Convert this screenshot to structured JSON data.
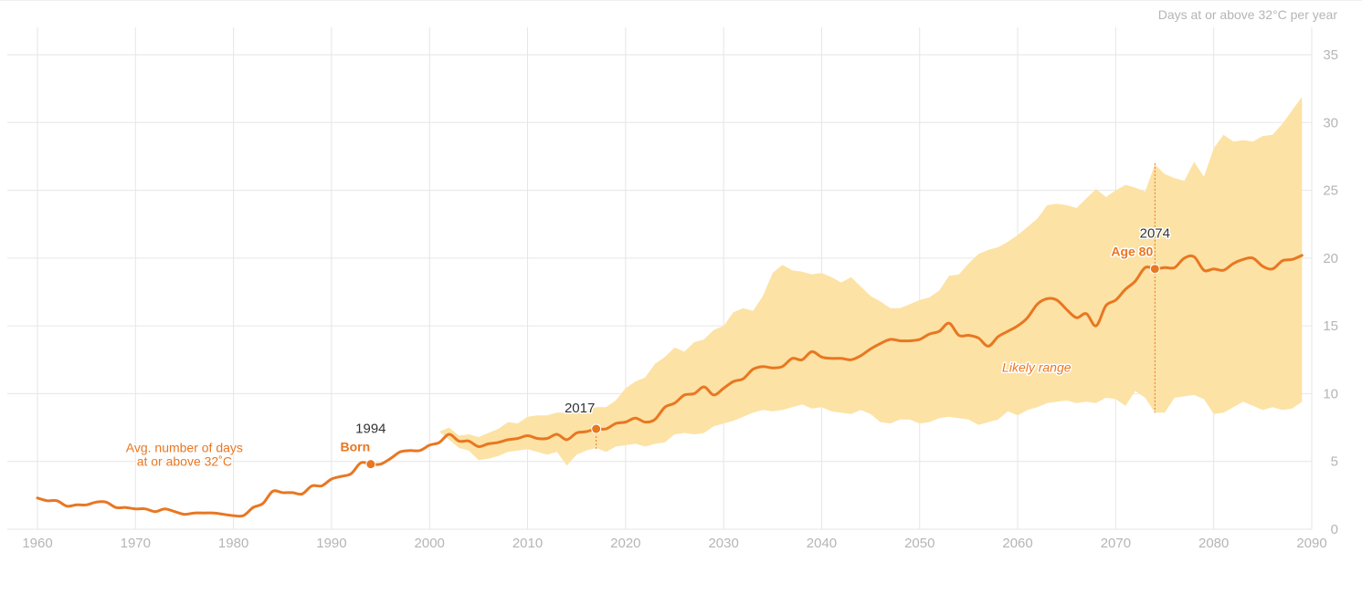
{
  "chart_data": {
    "type": "line",
    "ylabel": "Days at or above 32°C per year",
    "xlim": [
      1960,
      2090
    ],
    "ylim": [
      0,
      35
    ],
    "x_ticks": [
      1960,
      1970,
      1980,
      1990,
      2000,
      2010,
      2020,
      2030,
      2040,
      2050,
      2060,
      2070,
      2080,
      2090
    ],
    "y_ticks": [
      0,
      5,
      10,
      15,
      20,
      25,
      30,
      35
    ],
    "grid": true,
    "colors": {
      "line": "#e87722",
      "band": "#fce2a4",
      "grid": "#e6e6e6",
      "tick": "#b5b5b5",
      "label_dark": "#333333"
    },
    "series": [
      {
        "values": [
          [
            1960,
            2.3
          ],
          [
            1961,
            2.1
          ],
          [
            1962,
            2.1
          ],
          [
            1963,
            1.7
          ],
          [
            1964,
            1.8
          ],
          [
            1965,
            1.8
          ],
          [
            1966,
            2.0
          ],
          [
            1967,
            2.0
          ],
          [
            1968,
            1.6
          ],
          [
            1969,
            1.6
          ],
          [
            1970,
            1.5
          ],
          [
            1971,
            1.5
          ],
          [
            1972,
            1.3
          ],
          [
            1973,
            1.5
          ],
          [
            1974,
            1.3
          ],
          [
            1975,
            1.1
          ],
          [
            1976,
            1.2
          ],
          [
            1977,
            1.2
          ],
          [
            1978,
            1.2
          ],
          [
            1979,
            1.1
          ],
          [
            1980,
            1.0
          ],
          [
            1981,
            1.0
          ],
          [
            1982,
            1.6
          ],
          [
            1983,
            1.9
          ],
          [
            1984,
            2.8
          ],
          [
            1985,
            2.7
          ],
          [
            1986,
            2.7
          ],
          [
            1987,
            2.6
          ],
          [
            1988,
            3.2
          ],
          [
            1989,
            3.2
          ],
          [
            1990,
            3.7
          ],
          [
            1991,
            3.9
          ],
          [
            1992,
            4.1
          ],
          [
            1993,
            4.9
          ],
          [
            1994,
            4.8
          ],
          [
            1995,
            4.8
          ],
          [
            1996,
            5.2
          ],
          [
            1997,
            5.7
          ],
          [
            1998,
            5.8
          ],
          [
            1999,
            5.8
          ],
          [
            2000,
            6.2
          ],
          [
            2001,
            6.4
          ],
          [
            2002,
            7.0
          ],
          [
            2003,
            6.5
          ],
          [
            2004,
            6.5
          ],
          [
            2005,
            6.1
          ],
          [
            2006,
            6.3
          ],
          [
            2007,
            6.4
          ],
          [
            2008,
            6.6
          ],
          [
            2009,
            6.7
          ],
          [
            2010,
            6.9
          ],
          [
            2011,
            6.7
          ],
          [
            2012,
            6.7
          ],
          [
            2013,
            7.0
          ],
          [
            2014,
            6.6
          ],
          [
            2015,
            7.1
          ],
          [
            2016,
            7.2
          ],
          [
            2017,
            7.4
          ],
          [
            2018,
            7.4
          ],
          [
            2019,
            7.8
          ],
          [
            2020,
            7.9
          ],
          [
            2021,
            8.2
          ],
          [
            2022,
            7.9
          ],
          [
            2023,
            8.1
          ],
          [
            2024,
            9.0
          ],
          [
            2025,
            9.3
          ],
          [
            2026,
            9.9
          ],
          [
            2027,
            10.0
          ],
          [
            2028,
            10.5
          ],
          [
            2029,
            9.9
          ],
          [
            2030,
            10.4
          ],
          [
            2031,
            10.9
          ],
          [
            2032,
            11.1
          ],
          [
            2033,
            11.8
          ],
          [
            2034,
            12.0
          ],
          [
            2035,
            11.9
          ],
          [
            2036,
            12.0
          ],
          [
            2037,
            12.6
          ],
          [
            2038,
            12.5
          ],
          [
            2039,
            13.1
          ],
          [
            2040,
            12.7
          ],
          [
            2041,
            12.6
          ],
          [
            2042,
            12.6
          ],
          [
            2043,
            12.5
          ],
          [
            2044,
            12.8
          ],
          [
            2045,
            13.3
          ],
          [
            2046,
            13.7
          ],
          [
            2047,
            14.0
          ],
          [
            2048,
            13.9
          ],
          [
            2049,
            13.9
          ],
          [
            2050,
            14.0
          ],
          [
            2051,
            14.4
          ],
          [
            2052,
            14.6
          ],
          [
            2053,
            15.2
          ],
          [
            2054,
            14.3
          ],
          [
            2055,
            14.3
          ],
          [
            2056,
            14.1
          ],
          [
            2057,
            13.5
          ],
          [
            2058,
            14.2
          ],
          [
            2059,
            14.6
          ],
          [
            2060,
            15.0
          ],
          [
            2061,
            15.6
          ],
          [
            2062,
            16.6
          ],
          [
            2063,
            17.0
          ],
          [
            2064,
            16.9
          ],
          [
            2065,
            16.2
          ],
          [
            2066,
            15.6
          ],
          [
            2067,
            15.9
          ],
          [
            2068,
            15.0
          ],
          [
            2069,
            16.5
          ],
          [
            2070,
            16.9
          ],
          [
            2071,
            17.7
          ],
          [
            2072,
            18.3
          ],
          [
            2073,
            19.3
          ],
          [
            2074,
            19.2
          ],
          [
            2075,
            19.3
          ],
          [
            2076,
            19.3
          ],
          [
            2077,
            20.0
          ],
          [
            2078,
            20.1
          ],
          [
            2079,
            19.1
          ],
          [
            2080,
            19.2
          ],
          [
            2081,
            19.1
          ],
          [
            2082,
            19.6
          ],
          [
            2083,
            19.9
          ],
          [
            2084,
            20.0
          ],
          [
            2085,
            19.4
          ],
          [
            2086,
            19.2
          ],
          [
            2087,
            19.8
          ],
          [
            2088,
            19.9
          ],
          [
            2089,
            20.2
          ]
        ]
      }
    ],
    "range_band": {
      "label": "Likely range",
      "label_at": [
        2061,
        11.6
      ],
      "upper": [
        [
          2001,
          7.2
        ],
        [
          2002,
          7.5
        ],
        [
          2003,
          6.9
        ],
        [
          2004,
          7.0
        ],
        [
          2005,
          6.8
        ],
        [
          2006,
          7.1
        ],
        [
          2007,
          7.4
        ],
        [
          2008,
          7.9
        ],
        [
          2009,
          7.8
        ],
        [
          2010,
          8.3
        ],
        [
          2011,
          8.4
        ],
        [
          2012,
          8.4
        ],
        [
          2013,
          8.6
        ],
        [
          2014,
          8.6
        ],
        [
          2015,
          8.6
        ],
        [
          2016,
          8.8
        ],
        [
          2017,
          9.0
        ],
        [
          2018,
          9.0
        ],
        [
          2019,
          9.5
        ],
        [
          2020,
          10.4
        ],
        [
          2021,
          10.9
        ],
        [
          2022,
          11.2
        ],
        [
          2023,
          12.2
        ],
        [
          2024,
          12.7
        ],
        [
          2025,
          13.4
        ],
        [
          2026,
          13.1
        ],
        [
          2027,
          13.8
        ],
        [
          2028,
          14.0
        ],
        [
          2029,
          14.7
        ],
        [
          2030,
          15.0
        ],
        [
          2031,
          16.0
        ],
        [
          2032,
          16.3
        ],
        [
          2033,
          16.1
        ],
        [
          2034,
          17.2
        ],
        [
          2035,
          18.9
        ],
        [
          2036,
          19.5
        ],
        [
          2037,
          19.1
        ],
        [
          2038,
          19.0
        ],
        [
          2039,
          18.8
        ],
        [
          2040,
          18.9
        ],
        [
          2041,
          18.6
        ],
        [
          2042,
          18.2
        ],
        [
          2043,
          18.6
        ],
        [
          2044,
          17.9
        ],
        [
          2045,
          17.2
        ],
        [
          2046,
          16.8
        ],
        [
          2047,
          16.3
        ],
        [
          2048,
          16.3
        ],
        [
          2049,
          16.6
        ],
        [
          2050,
          16.9
        ],
        [
          2051,
          17.1
        ],
        [
          2052,
          17.6
        ],
        [
          2053,
          18.7
        ],
        [
          2054,
          18.8
        ],
        [
          2055,
          19.6
        ],
        [
          2056,
          20.3
        ],
        [
          2057,
          20.6
        ],
        [
          2058,
          20.8
        ],
        [
          2059,
          21.2
        ],
        [
          2060,
          21.7
        ],
        [
          2061,
          22.3
        ],
        [
          2062,
          22.9
        ],
        [
          2063,
          23.9
        ],
        [
          2064,
          24.0
        ],
        [
          2065,
          23.9
        ],
        [
          2066,
          23.7
        ],
        [
          2067,
          24.4
        ],
        [
          2068,
          25.1
        ],
        [
          2069,
          24.5
        ],
        [
          2070,
          25.0
        ],
        [
          2071,
          25.4
        ],
        [
          2072,
          25.2
        ],
        [
          2073,
          24.9
        ],
        [
          2074,
          26.9
        ],
        [
          2075,
          26.2
        ],
        [
          2076,
          25.9
        ],
        [
          2077,
          25.7
        ],
        [
          2078,
          27.1
        ],
        [
          2079,
          26.0
        ],
        [
          2080,
          28.1
        ],
        [
          2081,
          29.1
        ],
        [
          2082,
          28.6
        ],
        [
          2083,
          28.7
        ],
        [
          2084,
          28.6
        ],
        [
          2085,
          29.0
        ],
        [
          2086,
          29.1
        ],
        [
          2087,
          29.9
        ],
        [
          2088,
          30.9
        ],
        [
          2089,
          31.9
        ]
      ],
      "lower": [
        [
          2001,
          7.2
        ],
        [
          2002,
          6.6
        ],
        [
          2003,
          6.0
        ],
        [
          2004,
          5.8
        ],
        [
          2005,
          5.1
        ],
        [
          2006,
          5.2
        ],
        [
          2007,
          5.4
        ],
        [
          2008,
          5.7
        ],
        [
          2009,
          5.8
        ],
        [
          2010,
          5.9
        ],
        [
          2011,
          5.7
        ],
        [
          2012,
          5.5
        ],
        [
          2013,
          5.7
        ],
        [
          2014,
          4.7
        ],
        [
          2015,
          5.5
        ],
        [
          2016,
          5.8
        ],
        [
          2017,
          6.0
        ],
        [
          2018,
          5.7
        ],
        [
          2019,
          6.1
        ],
        [
          2020,
          6.2
        ],
        [
          2021,
          6.3
        ],
        [
          2022,
          6.1
        ],
        [
          2023,
          6.3
        ],
        [
          2024,
          6.4
        ],
        [
          2025,
          7.0
        ],
        [
          2026,
          7.1
        ],
        [
          2027,
          7.0
        ],
        [
          2028,
          7.1
        ],
        [
          2029,
          7.6
        ],
        [
          2030,
          7.8
        ],
        [
          2031,
          8.0
        ],
        [
          2032,
          8.3
        ],
        [
          2033,
          8.6
        ],
        [
          2034,
          8.8
        ],
        [
          2035,
          8.7
        ],
        [
          2036,
          8.8
        ],
        [
          2037,
          9.0
        ],
        [
          2038,
          9.2
        ],
        [
          2039,
          8.9
        ],
        [
          2040,
          9.0
        ],
        [
          2041,
          8.7
        ],
        [
          2042,
          8.6
        ],
        [
          2043,
          8.5
        ],
        [
          2044,
          8.8
        ],
        [
          2045,
          8.5
        ],
        [
          2046,
          7.9
        ],
        [
          2047,
          7.8
        ],
        [
          2048,
          8.1
        ],
        [
          2049,
          8.1
        ],
        [
          2050,
          7.8
        ],
        [
          2051,
          7.9
        ],
        [
          2052,
          8.2
        ],
        [
          2053,
          8.3
        ],
        [
          2054,
          8.2
        ],
        [
          2055,
          8.1
        ],
        [
          2056,
          7.7
        ],
        [
          2057,
          7.9
        ],
        [
          2058,
          8.1
        ],
        [
          2059,
          8.7
        ],
        [
          2060,
          8.4
        ],
        [
          2061,
          8.8
        ],
        [
          2062,
          9.0
        ],
        [
          2063,
          9.3
        ],
        [
          2064,
          9.4
        ],
        [
          2065,
          9.5
        ],
        [
          2066,
          9.3
        ],
        [
          2067,
          9.4
        ],
        [
          2068,
          9.3
        ],
        [
          2069,
          9.7
        ],
        [
          2070,
          9.6
        ],
        [
          2071,
          9.1
        ],
        [
          2072,
          10.2
        ],
        [
          2073,
          9.7
        ],
        [
          2074,
          8.6
        ],
        [
          2075,
          8.6
        ],
        [
          2076,
          9.7
        ],
        [
          2077,
          9.8
        ],
        [
          2078,
          9.9
        ],
        [
          2079,
          9.6
        ],
        [
          2080,
          8.5
        ],
        [
          2081,
          8.6
        ],
        [
          2082,
          9.0
        ],
        [
          2083,
          9.4
        ],
        [
          2084,
          9.1
        ],
        [
          2085,
          8.8
        ],
        [
          2086,
          9.0
        ],
        [
          2087,
          8.8
        ],
        [
          2088,
          8.9
        ],
        [
          2089,
          9.4
        ]
      ]
    },
    "annotations": [
      {
        "id": "avg",
        "x": 1994,
        "y": 4.8,
        "lines": [
          "Avg. number of days",
          "at or above 32˚C"
        ]
      },
      {
        "id": "born",
        "x": 1994,
        "y": 4.8,
        "year": "1994",
        "label": "Born",
        "marker": true,
        "drop_line": false
      },
      {
        "id": "now",
        "x": 2017,
        "y": 7.4,
        "year": "2017",
        "label": "",
        "marker": true,
        "drop_line": true,
        "drop_to": 5.8
      },
      {
        "id": "age80",
        "x": 2074,
        "y": 19.2,
        "year": "2074",
        "label": "Age 80",
        "marker": true,
        "drop_line": true,
        "drop_to": 8.6,
        "drop_from": 27.0
      }
    ]
  }
}
